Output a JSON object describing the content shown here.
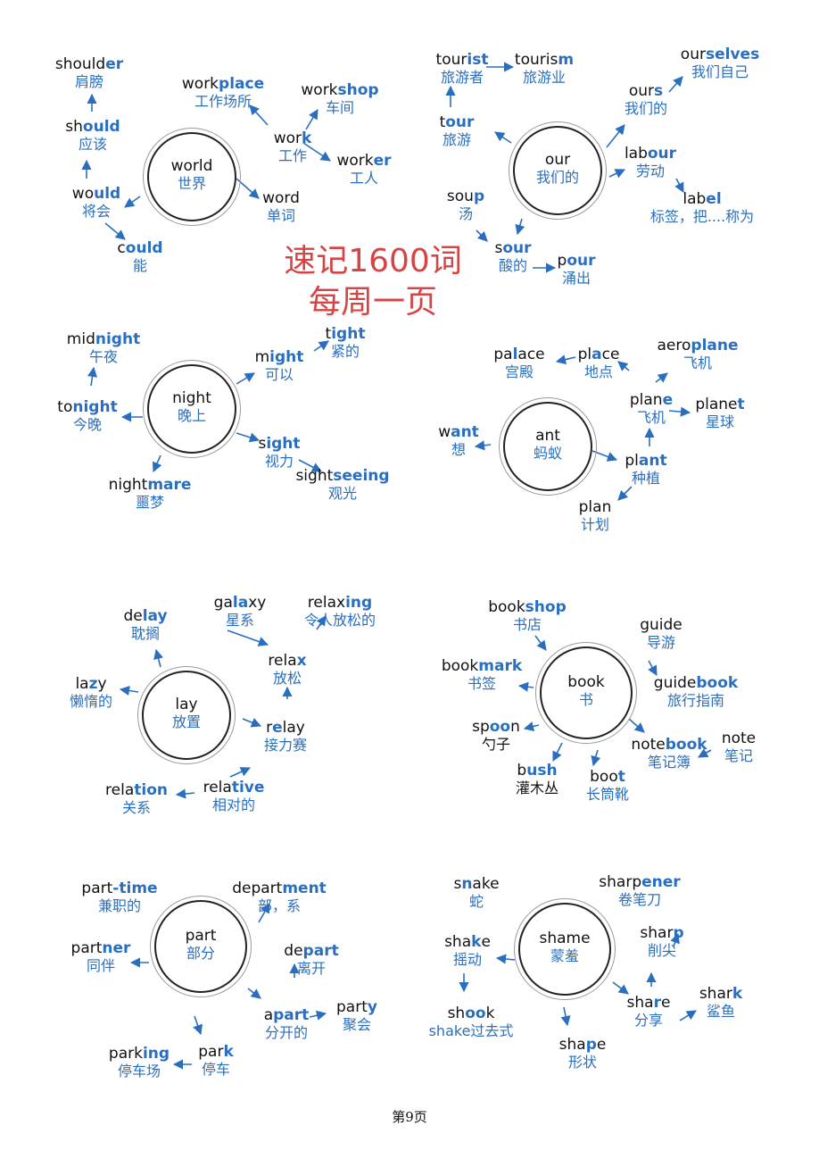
{
  "title": {
    "line1": "速记1600词",
    "line2": "每周一页"
  },
  "footer": "第9页",
  "clusters": [
    {
      "center": {
        "en": [
          "world"
        ],
        "zh": "世界"
      },
      "words": [
        {
          "en": [
            "should",
            "er"
          ],
          "zh": "肩膀"
        },
        {
          "en": [
            "sh",
            "ould"
          ],
          "zh": "应该"
        },
        {
          "en": [
            "wo",
            "uld"
          ],
          "zh": "将会"
        },
        {
          "en": [
            "c",
            "ould"
          ],
          "zh": "能"
        },
        {
          "en": [
            "work",
            "place"
          ],
          "zh": "工作场所"
        },
        {
          "en": [
            "wor",
            "k"
          ],
          "zh": "工作"
        },
        {
          "en": [
            "work",
            "shop"
          ],
          "zh": "车间"
        },
        {
          "en": [
            "work",
            "er"
          ],
          "zh": "工人"
        },
        {
          "en": [
            "word"
          ],
          "zh": "单词"
        }
      ]
    },
    {
      "center": {
        "en": [
          "our"
        ],
        "zh": "我们的"
      },
      "words": [
        {
          "en": [
            "tour",
            "ist"
          ],
          "zh": "旅游者"
        },
        {
          "en": [
            "touris",
            "m"
          ],
          "zh": "旅游业"
        },
        {
          "en": [
            "t",
            "our"
          ],
          "zh": "旅游"
        },
        {
          "en": [
            "sou",
            "p"
          ],
          "zh": "汤"
        },
        {
          "en": [
            "s",
            "our"
          ],
          "zh": "酸的"
        },
        {
          "en": [
            "p",
            "our"
          ],
          "zh": "涌出"
        },
        {
          "en": [
            "our",
            "selves"
          ],
          "zh": "我们自己"
        },
        {
          "en": [
            "our",
            "s"
          ],
          "zh": "我们的"
        },
        {
          "en": [
            "lab",
            "our"
          ],
          "zh": "劳动"
        },
        {
          "en": [
            "lab",
            "el"
          ],
          "zh": "标签，把....称为"
        }
      ]
    },
    {
      "center": {
        "en": [
          "night"
        ],
        "zh": "晚上"
      },
      "words": [
        {
          "en": [
            "mid",
            "night"
          ],
          "zh": "午夜"
        },
        {
          "en": [
            "to",
            "night"
          ],
          "zh": "今晚"
        },
        {
          "en": [
            "night",
            "mare"
          ],
          "zh": "噩梦"
        },
        {
          "en": [
            "m",
            "ight"
          ],
          "zh": "可以"
        },
        {
          "en": [
            "t",
            "ight"
          ],
          "zh": "紧的"
        },
        {
          "en": [
            "s",
            "ight"
          ],
          "zh": "视力"
        },
        {
          "en": [
            "sight",
            "seeing"
          ],
          "zh": "观光"
        }
      ]
    },
    {
      "center": {
        "en": [
          "ant"
        ],
        "zh": "蚂蚁"
      },
      "words": [
        {
          "en": [
            "pa",
            "l",
            "ace"
          ],
          "zh": "宫殿"
        },
        {
          "en": [
            "pl",
            "a",
            "ce"
          ],
          "zh": "地点"
        },
        {
          "en": [
            "aero",
            "plane"
          ],
          "zh": "飞机"
        },
        {
          "en": [
            "plan",
            "e"
          ],
          "zh": "飞机"
        },
        {
          "en": [
            "plane",
            "t"
          ],
          "zh": "星球"
        },
        {
          "en": [
            "w",
            "ant"
          ],
          "zh": "想"
        },
        {
          "en": [
            "pl",
            "ant"
          ],
          "zh": "种植"
        },
        {
          "en": [
            "plan"
          ],
          "zh": "计划"
        }
      ]
    },
    {
      "center": {
        "en": [
          "lay"
        ],
        "zh": "放置"
      },
      "words": [
        {
          "en": [
            "de",
            "lay"
          ],
          "zh": "耽搁"
        },
        {
          "en": [
            "la",
            "z",
            "y"
          ],
          "zh": "懒惰的"
        },
        {
          "en": [
            "ga",
            "la",
            "xy"
          ],
          "zh": "星系"
        },
        {
          "en": [
            "relax",
            "ing"
          ],
          "zh": "令人放松的"
        },
        {
          "en": [
            "rela",
            "x"
          ],
          "zh": "放松"
        },
        {
          "en": [
            "r",
            "e",
            "lay"
          ],
          "zh": "接力赛"
        },
        {
          "en": [
            "rela",
            "tive"
          ],
          "zh": "相对的"
        },
        {
          "en": [
            "rela",
            "tion"
          ],
          "zh": "关系"
        }
      ]
    },
    {
      "center": {
        "en": [
          "book"
        ],
        "zh": "书"
      },
      "words": [
        {
          "en": [
            "book",
            "shop"
          ],
          "zh": "书店"
        },
        {
          "en": [
            "guide"
          ],
          "zh": "导游"
        },
        {
          "en": [
            "book",
            "mark"
          ],
          "zh": "书签"
        },
        {
          "en": [
            "guide",
            "book"
          ],
          "zh": "旅行指南"
        },
        {
          "en": [
            "sp",
            "oo",
            "n"
          ],
          "zh": "勺子",
          "dark": true
        },
        {
          "en": [
            "b",
            "ush"
          ],
          "zh": "灌木丛",
          "dark": true
        },
        {
          "en": [
            "boo",
            "t"
          ],
          "zh": "长筒靴"
        },
        {
          "en": [
            "note",
            "book"
          ],
          "zh": "笔记簿"
        },
        {
          "en": [
            "note"
          ],
          "zh": "笔记"
        }
      ]
    },
    {
      "center": {
        "en": [
          "part"
        ],
        "zh": "部分"
      },
      "words": [
        {
          "en": [
            "part",
            "-time"
          ],
          "zh": "兼职的"
        },
        {
          "en": [
            "depart",
            "ment"
          ],
          "zh": "部，系"
        },
        {
          "en": [
            "part",
            "ner"
          ],
          "zh": "同伴"
        },
        {
          "en": [
            "de",
            "part"
          ],
          "zh": "离开"
        },
        {
          "en": [
            "a",
            "part"
          ],
          "zh": "分开的"
        },
        {
          "en": [
            "part",
            "y"
          ],
          "zh": "聚会"
        },
        {
          "en": [
            "par",
            "k"
          ],
          "zh": "停车"
        },
        {
          "en": [
            "park",
            "ing"
          ],
          "zh": "停车场"
        }
      ]
    },
    {
      "center": {
        "en": [
          "shame"
        ],
        "zh": "蒙羞"
      },
      "words": [
        {
          "en": [
            "s",
            "n",
            "ake"
          ],
          "zh": "蛇"
        },
        {
          "en": [
            "sharp",
            "ener"
          ],
          "zh": "卷笔刀"
        },
        {
          "en": [
            "sha",
            "k",
            "e"
          ],
          "zh": "摇动"
        },
        {
          "en": [
            "shar",
            "p"
          ],
          "zh": "削尖"
        },
        {
          "en": [
            "sh",
            "oo",
            "k"
          ],
          "zh": "shake过去式"
        },
        {
          "en": [
            "sha",
            "r",
            "e"
          ],
          "zh": "分享"
        },
        {
          "en": [
            "shar",
            "k"
          ],
          "zh": "鲨鱼"
        },
        {
          "en": [
            "sha",
            "p",
            "e"
          ],
          "zh": "形状"
        }
      ]
    }
  ]
}
